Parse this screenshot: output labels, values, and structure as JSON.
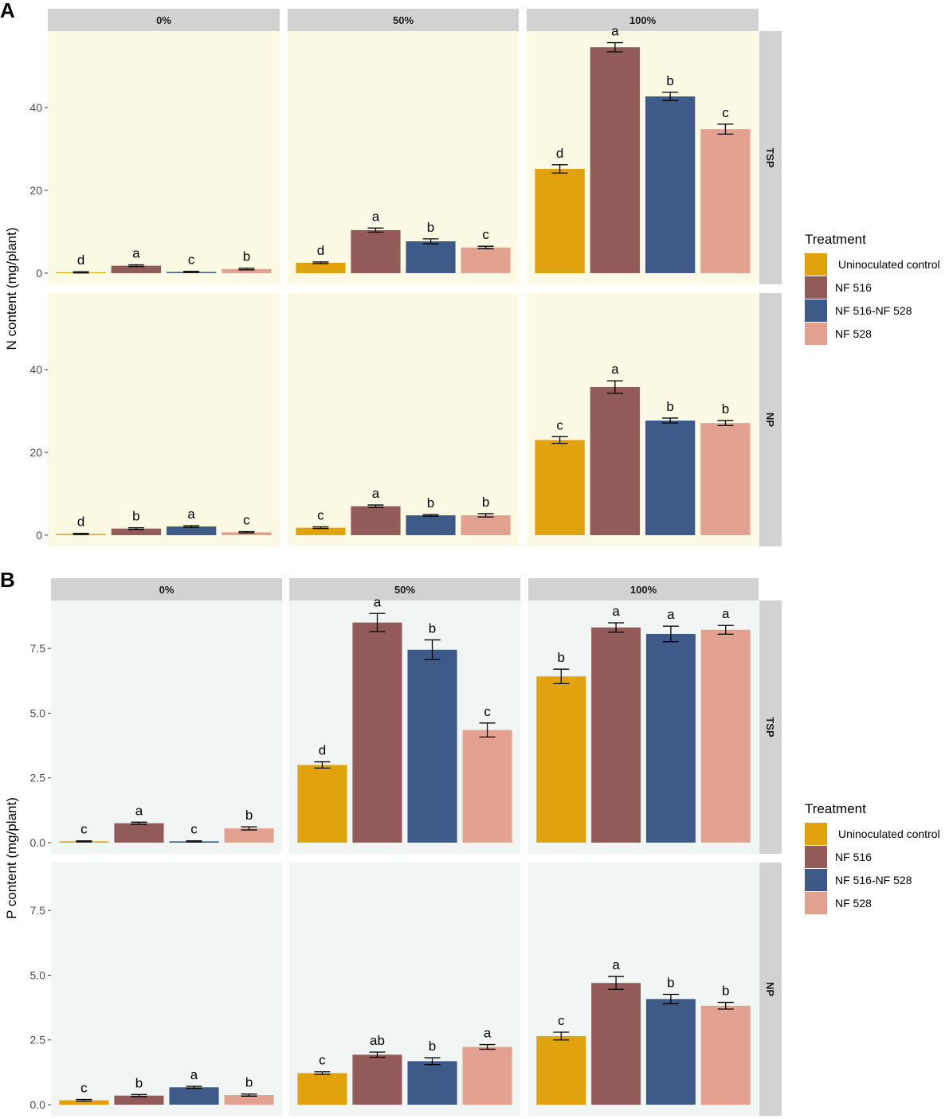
{
  "legend": {
    "title": "Treatment",
    "items": [
      "Uninoculated control",
      "NF 516",
      "NF 516-NF 528",
      "NF 528"
    ],
    "colors": [
      "#E0A30D",
      "#935A5A",
      "#3E5A88",
      "#E3A190"
    ]
  },
  "chart_data": [
    {
      "type": "bar",
      "panel_label": "A",
      "ylabel": "N content (mg/plant)",
      "yticks": [
        0,
        20,
        40
      ],
      "ytick_labels": [
        "0",
        "20",
        "40"
      ],
      "ylim": [
        -2.7,
        58.5
      ],
      "panel_bg": "#FCFAE4",
      "columns": [
        "0%",
        "50%",
        "100%"
      ],
      "rows": [
        "TSP",
        "NP"
      ],
      "data": {
        "TSP": {
          "0%": {
            "values": [
              0.2,
              1.8,
              0.3,
              1.0
            ],
            "errors": [
              0.15,
              0.2,
              0.15,
              0.2
            ],
            "letters": [
              "d",
              "a",
              "c",
              "b"
            ]
          },
          "50%": {
            "values": [
              2.5,
              10.4,
              7.7,
              6.2
            ],
            "errors": [
              0.2,
              0.5,
              0.6,
              0.3
            ],
            "letters": [
              "d",
              "a",
              "b",
              "c"
            ]
          },
          "100%": {
            "values": [
              25.2,
              54.6,
              42.7,
              34.8
            ],
            "errors": [
              1.0,
              1.1,
              1.0,
              1.2
            ],
            "letters": [
              "d",
              "a",
              "b",
              "c"
            ]
          }
        },
        "NP": {
          "0%": {
            "values": [
              0.3,
              1.6,
              2.1,
              0.7
            ],
            "errors": [
              0.15,
              0.2,
              0.2,
              0.15
            ],
            "letters": [
              "d",
              "b",
              "a",
              "c"
            ]
          },
          "50%": {
            "values": [
              1.8,
              7.0,
              4.8,
              4.8
            ],
            "errors": [
              0.2,
              0.3,
              0.2,
              0.4
            ],
            "letters": [
              "c",
              "a",
              "b",
              "b"
            ]
          },
          "100%": {
            "values": [
              23.0,
              35.8,
              27.7,
              27.1
            ],
            "errors": [
              0.8,
              1.5,
              0.6,
              0.6
            ],
            "letters": [
              "c",
              "a",
              "b",
              "b"
            ]
          }
        }
      }
    },
    {
      "type": "bar",
      "panel_label": "B",
      "ylabel": "P content (mg/plant)",
      "yticks": [
        0,
        2.5,
        5,
        7.5
      ],
      "ytick_labels": [
        "0.0",
        "2.5",
        "5.0",
        "7.5"
      ],
      "ylim": [
        -0.43,
        9.35
      ],
      "panel_bg": "#F1F6F5",
      "columns": [
        "0%",
        "50%",
        "100%"
      ],
      "rows": [
        "TSP",
        "NP"
      ],
      "data": {
        "TSP": {
          "0%": {
            "values": [
              0.05,
              0.75,
              0.05,
              0.55
            ],
            "errors": [
              0.02,
              0.04,
              0.02,
              0.06
            ],
            "letters": [
              "c",
              "a",
              "c",
              "b"
            ]
          },
          "50%": {
            "values": [
              3.0,
              8.5,
              7.45,
              4.35
            ],
            "errors": [
              0.12,
              0.35,
              0.38,
              0.27
            ],
            "letters": [
              "d",
              "a",
              "b",
              "c"
            ]
          },
          "100%": {
            "values": [
              6.42,
              8.31,
              8.06,
              8.22
            ],
            "errors": [
              0.28,
              0.18,
              0.3,
              0.17
            ],
            "letters": [
              "b",
              "a",
              "a",
              "a"
            ]
          }
        },
        "NP": {
          "0%": {
            "values": [
              0.17,
              0.35,
              0.67,
              0.37
            ],
            "errors": [
              0.03,
              0.04,
              0.04,
              0.04
            ],
            "letters": [
              "c",
              "b",
              "a",
              "b"
            ]
          },
          "50%": {
            "values": [
              1.22,
              1.93,
              1.68,
              2.23
            ],
            "errors": [
              0.05,
              0.1,
              0.13,
              0.09
            ],
            "letters": [
              "c",
              "ab",
              "b",
              "a"
            ]
          },
          "100%": {
            "values": [
              2.65,
              4.7,
              4.08,
              3.82
            ],
            "errors": [
              0.15,
              0.25,
              0.18,
              0.13
            ],
            "letters": [
              "c",
              "a",
              "b",
              "b"
            ]
          }
        }
      }
    }
  ]
}
